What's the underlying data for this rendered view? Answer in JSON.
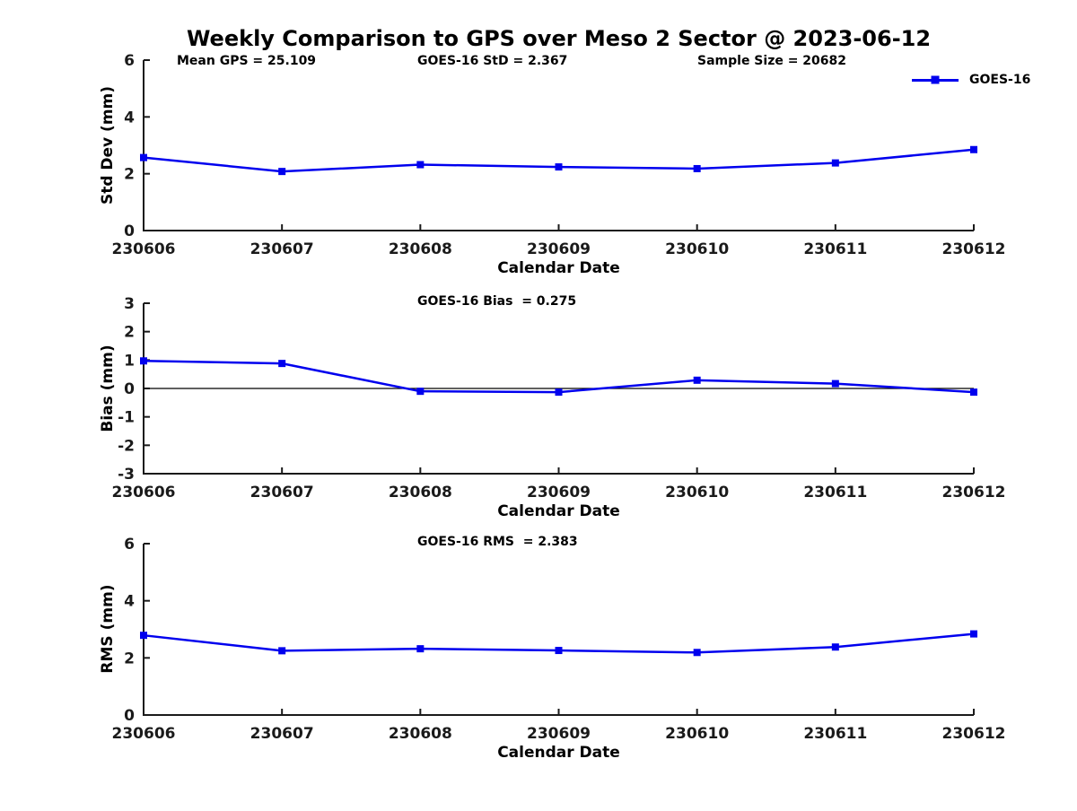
{
  "figure": {
    "title": "Weekly Comparison to GPS over Meso 2 Sector @ 2023-06-12",
    "accent_color": "#0000EE",
    "axis_color": "#1a1a1a"
  },
  "chart_data": [
    {
      "type": "line",
      "title": "",
      "xlabel": "Calendar Date",
      "ylabel": "Std Dev (mm)",
      "ylim": [
        0,
        6
      ],
      "yticks": [
        0,
        2,
        4,
        6
      ],
      "grid": false,
      "zero_line": false,
      "categories": [
        "230606",
        "230607",
        "230608",
        "230609",
        "230610",
        "230611",
        "230612"
      ],
      "series": [
        {
          "name": "GOES-16",
          "color": "#0000EE",
          "marker": "square",
          "values": [
            2.57,
            2.08,
            2.32,
            2.24,
            2.18,
            2.38,
            2.85
          ]
        }
      ],
      "annotations": [
        {
          "text": "Mean GPS = 25.109"
        },
        {
          "text": "GOES-16 StD = 2.367"
        },
        {
          "text": "Sample Size = 20682"
        }
      ],
      "legend": {
        "label": "GOES-16",
        "position": "top-right"
      }
    },
    {
      "type": "line",
      "title": "",
      "xlabel": "Calendar Date",
      "ylabel": "Bias (mm)",
      "ylim": [
        -3,
        3
      ],
      "yticks": [
        -3,
        -2,
        -1,
        0,
        1,
        2,
        3
      ],
      "grid": false,
      "zero_line": true,
      "categories": [
        "230606",
        "230607",
        "230608",
        "230609",
        "230610",
        "230611",
        "230612"
      ],
      "series": [
        {
          "name": "GOES-16",
          "color": "#0000EE",
          "marker": "square",
          "values": [
            0.97,
            0.88,
            -0.1,
            -0.13,
            0.29,
            0.17,
            -0.13
          ]
        }
      ],
      "annotations": [
        {
          "text": "GOES-16 Bias  = 0.275"
        }
      ]
    },
    {
      "type": "line",
      "title": "",
      "xlabel": "Calendar Date",
      "ylabel": "RMS (mm)",
      "ylim": [
        0,
        6
      ],
      "yticks": [
        0,
        2,
        4,
        6
      ],
      "grid": false,
      "zero_line": false,
      "categories": [
        "230606",
        "230607",
        "230608",
        "230609",
        "230610",
        "230611",
        "230612"
      ],
      "series": [
        {
          "name": "GOES-16",
          "color": "#0000EE",
          "marker": "square",
          "values": [
            2.79,
            2.25,
            2.32,
            2.26,
            2.19,
            2.38,
            2.84
          ]
        }
      ],
      "annotations": [
        {
          "text": "GOES-16 RMS  = 2.383"
        }
      ]
    }
  ]
}
